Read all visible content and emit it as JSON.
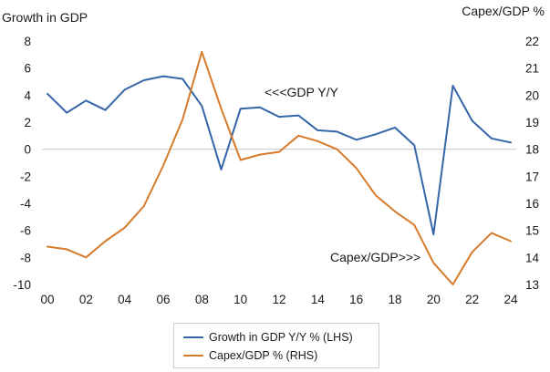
{
  "chart_data": {
    "type": "line",
    "left_axis_title": "Growth in GDP",
    "right_axis_title": "Capex/GDP %",
    "x": [
      "00",
      "01",
      "02",
      "03",
      "04",
      "05",
      "06",
      "07",
      "08",
      "09",
      "10",
      "11",
      "12",
      "13",
      "14",
      "15",
      "16",
      "17",
      "18",
      "19",
      "20",
      "21",
      "22",
      "23",
      "24"
    ],
    "x_tick_labels": [
      "00",
      "02",
      "04",
      "06",
      "08",
      "10",
      "12",
      "14",
      "16",
      "18",
      "20",
      "22",
      "24"
    ],
    "y_left_ticks": [
      "8",
      "6",
      "4",
      "2",
      "0",
      "-2",
      "-4",
      "-6",
      "-8",
      "-10"
    ],
    "y_right_ticks": [
      "22",
      "21",
      "20",
      "19",
      "18",
      "17",
      "16",
      "15",
      "14",
      "13"
    ],
    "ylim_left": [
      -10,
      8
    ],
    "ylim_right": [
      13,
      22
    ],
    "series": [
      {
        "name": "Growth in GDP Y/Y % (LHS)",
        "axis": "left",
        "color": "#3566a8",
        "values": [
          4.1,
          2.7,
          3.6,
          2.9,
          4.4,
          5.1,
          5.4,
          5.2,
          3.2,
          -1.5,
          3.0,
          3.1,
          2.4,
          2.5,
          1.4,
          1.3,
          0.7,
          1.1,
          1.6,
          0.3,
          -6.3,
          4.7,
          2.1,
          0.8,
          0.5
        ]
      },
      {
        "name": "Capex/GDP % (RHS)",
        "axis": "right",
        "color": "#d67b2b",
        "values": [
          14.4,
          14.3,
          14.0,
          14.6,
          15.1,
          15.9,
          17.4,
          19.1,
          21.6,
          19.5,
          17.6,
          17.8,
          17.9,
          18.5,
          18.3,
          18.0,
          17.3,
          16.3,
          15.7,
          15.2,
          13.8,
          13.0,
          14.2,
          14.9,
          14.6
        ]
      }
    ],
    "annotations": [
      "<<<GDP Y/Y",
      "Capex/GDP>>>"
    ]
  }
}
